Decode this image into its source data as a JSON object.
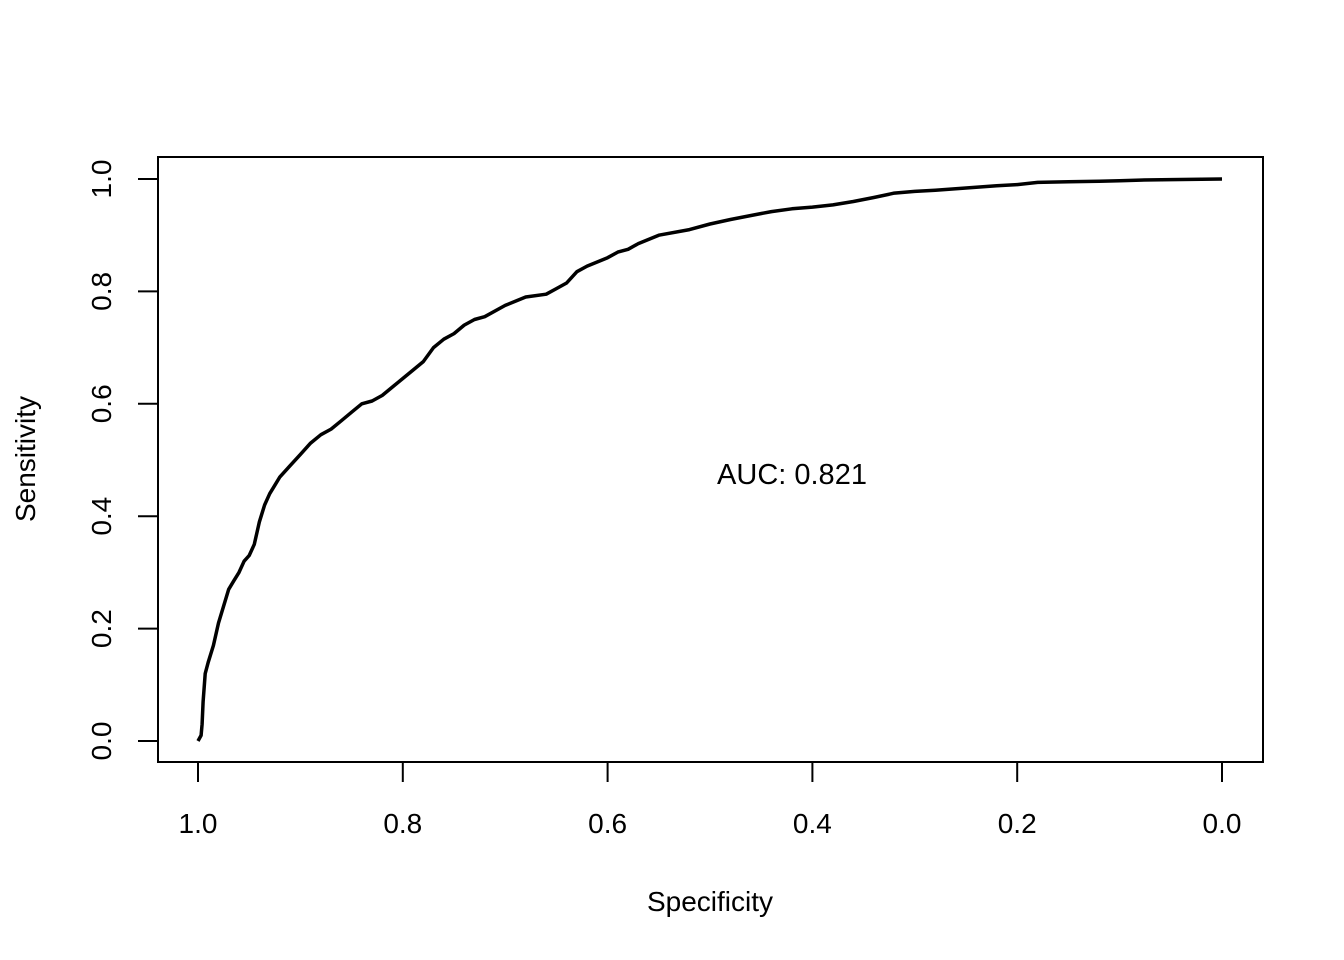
{
  "chart_data": {
    "type": "line",
    "title": "",
    "xlabel": "Specificity",
    "ylabel": "Sensitivity",
    "x_reversed": true,
    "xlim": [
      1.0,
      0.0
    ],
    "ylim": [
      0.0,
      1.0
    ],
    "xticks": [
      "1.0",
      "0.8",
      "0.6",
      "0.4",
      "0.2",
      "0.0"
    ],
    "yticks": [
      "0.0",
      "0.2",
      "0.4",
      "0.6",
      "0.8",
      "1.0"
    ],
    "grid": false,
    "annotation": "AUC: 0.821",
    "line_color": "#000000",
    "series": [
      {
        "x": [
          1.0,
          0.997,
          0.996,
          0.995,
          0.993,
          0.99,
          0.985,
          0.98,
          0.975,
          0.97,
          0.965,
          0.96,
          0.955,
          0.95,
          0.945,
          0.94,
          0.935,
          0.93,
          0.925,
          0.92,
          0.91,
          0.9,
          0.89,
          0.88,
          0.87,
          0.86,
          0.85,
          0.84,
          0.83,
          0.82,
          0.81,
          0.8,
          0.79,
          0.78,
          0.77,
          0.76,
          0.75,
          0.74,
          0.73,
          0.72,
          0.7,
          0.68,
          0.66,
          0.65,
          0.64,
          0.63,
          0.62,
          0.6,
          0.59,
          0.58,
          0.57,
          0.55,
          0.52,
          0.5,
          0.48,
          0.46,
          0.44,
          0.42,
          0.4,
          0.38,
          0.36,
          0.34,
          0.32,
          0.3,
          0.28,
          0.25,
          0.22,
          0.2,
          0.18,
          0.15,
          0.12,
          0.1,
          0.08,
          0.05,
          0.0
        ],
        "y": [
          0.0,
          0.01,
          0.03,
          0.07,
          0.12,
          0.14,
          0.17,
          0.21,
          0.24,
          0.27,
          0.285,
          0.3,
          0.32,
          0.33,
          0.35,
          0.39,
          0.42,
          0.44,
          0.455,
          0.47,
          0.49,
          0.51,
          0.53,
          0.545,
          0.555,
          0.57,
          0.585,
          0.6,
          0.605,
          0.615,
          0.63,
          0.645,
          0.66,
          0.675,
          0.7,
          0.715,
          0.725,
          0.74,
          0.75,
          0.755,
          0.775,
          0.79,
          0.795,
          0.805,
          0.815,
          0.835,
          0.845,
          0.86,
          0.87,
          0.875,
          0.885,
          0.9,
          0.91,
          0.92,
          0.928,
          0.935,
          0.942,
          0.947,
          0.95,
          0.954,
          0.96,
          0.967,
          0.975,
          0.978,
          0.98,
          0.984,
          0.988,
          0.99,
          0.994,
          0.995,
          0.996,
          0.997,
          0.998,
          0.999,
          1.0
        ]
      }
    ]
  }
}
